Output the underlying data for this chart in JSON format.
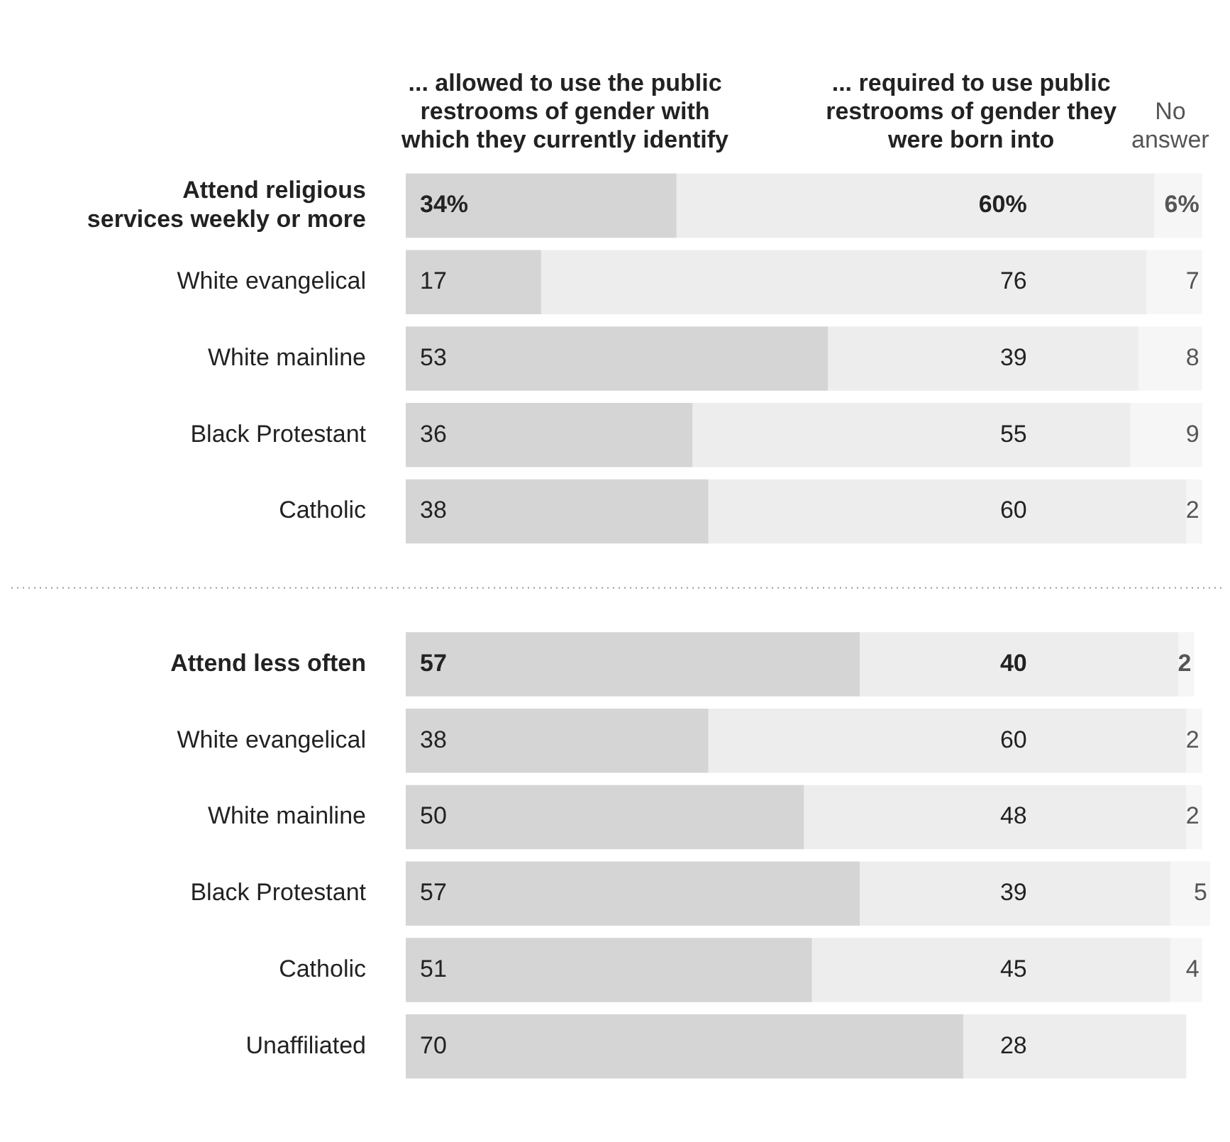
{
  "chart_data": {
    "type": "bar",
    "orientation": "horizontal",
    "stacked": true,
    "categories": [
      "Attend religious services weekly or more",
      "White evangelical",
      "White mainline",
      "Black Protestant",
      "Catholic",
      null,
      "Attend less often",
      "White evangelical",
      "White mainline",
      "Black Protestant",
      "Catholic",
      "Unaffiliated"
    ],
    "series": [
      {
        "name": "... allowed to use the public restrooms of gender with which they currently identify",
        "color": "#d5d5d5",
        "values": [
          34,
          17,
          53,
          36,
          38,
          null,
          57,
          38,
          50,
          57,
          51,
          70
        ],
        "value_labels": [
          "34%",
          "17",
          "53",
          "36",
          "38",
          null,
          "57",
          "38",
          "50",
          "57",
          "51",
          "70"
        ]
      },
      {
        "name": "... required to use public restrooms of gender they were born into",
        "color": "#ededed",
        "values": [
          60,
          76,
          39,
          55,
          60,
          null,
          40,
          60,
          48,
          39,
          45,
          28
        ],
        "value_labels": [
          "60%",
          "76",
          "39",
          "55",
          "60",
          null,
          "40",
          "60",
          "48",
          "39",
          "45",
          "28"
        ]
      },
      {
        "name": "No answer",
        "color": "#f6f6f6",
        "values": [
          6,
          7,
          8,
          9,
          2,
          null,
          2,
          2,
          2,
          5,
          4,
          null
        ],
        "value_labels": [
          "6%",
          "7",
          "8",
          "9",
          "2",
          null,
          "2",
          "2",
          "2",
          "5",
          "4",
          null
        ]
      }
    ],
    "xlim": [
      0,
      101
    ],
    "tick_labels": "y",
    "legend": false
  }
}
